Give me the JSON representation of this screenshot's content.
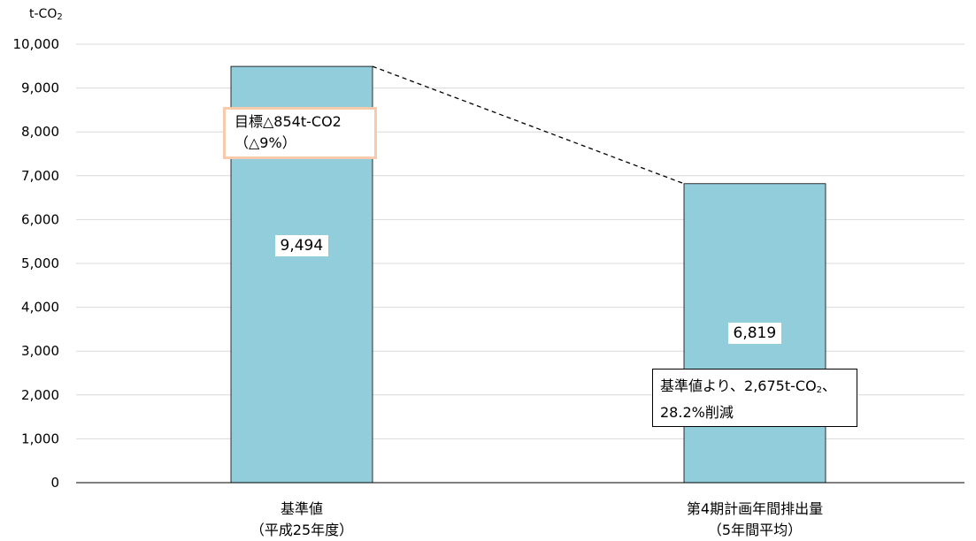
{
  "chart_data": {
    "type": "bar",
    "categories": [
      {
        "line1": "基準値",
        "line2": "（平成25年度）"
      },
      {
        "line1": "第4期計画年間排出量",
        "line2": "（5年間平均）"
      }
    ],
    "values": [
      9494,
      6819
    ],
    "value_labels": [
      "9,494",
      "6,819"
    ],
    "ylim": [
      0,
      10000
    ],
    "yticks": [
      0,
      1000,
      2000,
      3000,
      4000,
      5000,
      6000,
      7000,
      8000,
      9000,
      10000
    ],
    "ytick_labels": [
      "0",
      "1,000",
      "2,000",
      "3,000",
      "4,000",
      "5,000",
      "6,000",
      "7,000",
      "8,000",
      "9,000",
      "10,000"
    ],
    "ylabel": {
      "main": "t-CO",
      "sub": "2"
    },
    "grid": true,
    "bar_color": "#92cddc",
    "annotations": {
      "target": {
        "line1": "目標△854t-CO2",
        "line2": "（△9%）",
        "border_color": "#f8cbad"
      },
      "reduction": {
        "line1_pre": "基準値より、2,675t-CO",
        "line1_sub": "2",
        "line1_post": "、",
        "line2": "28.2%削減"
      }
    }
  }
}
